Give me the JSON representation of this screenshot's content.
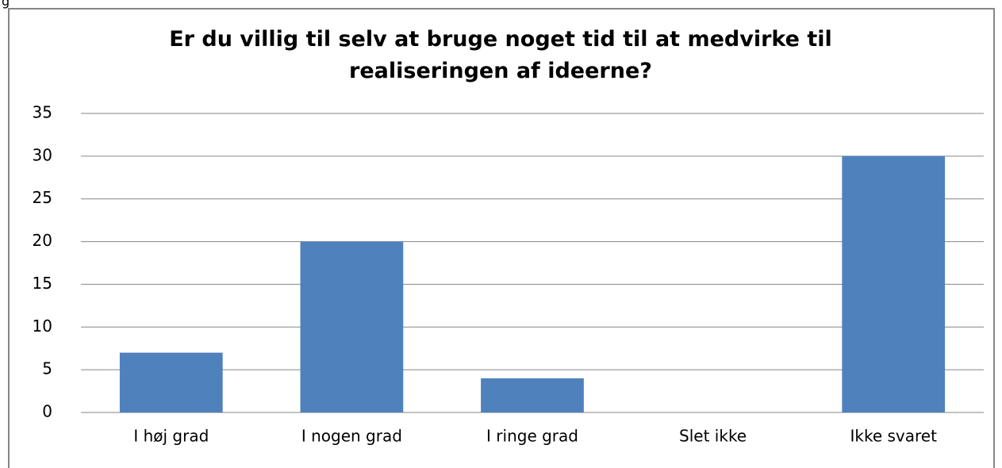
{
  "fragment": "g",
  "chart_data": {
    "type": "bar",
    "title": "Er du villig til selv at bruge noget tid til at medvirke til realiseringen af ideerne?",
    "categories": [
      "I høj grad",
      "I nogen grad",
      "I ringe grad",
      "Slet ikke",
      "Ikke svaret"
    ],
    "values": [
      7,
      20,
      4,
      0,
      30
    ],
    "color": "#4f81bd",
    "ylim": [
      0,
      35
    ],
    "yticks": [
      0,
      5,
      10,
      15,
      20,
      25,
      30,
      35
    ],
    "grid": true
  }
}
